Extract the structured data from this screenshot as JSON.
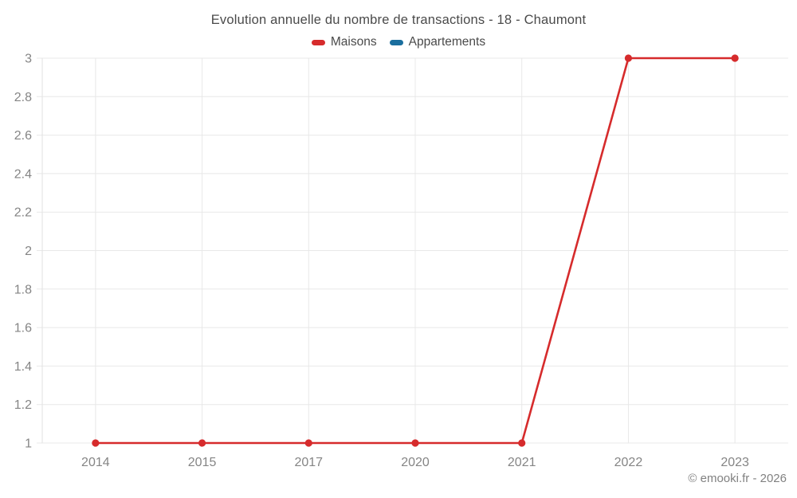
{
  "colors": {
    "background": "#ffffff",
    "grid": "#e8e8e8",
    "axis": "#e2e2e2",
    "tick_text": "#858585",
    "title_text": "#4a4a4a",
    "copyright_text": "#818181"
  },
  "chart_data": {
    "type": "line",
    "title": "Evolution annuelle du nombre de transactions - 18 - Chaumont",
    "categories": [
      "2014",
      "2015",
      "2017",
      "2020",
      "2021",
      "2022",
      "2023"
    ],
    "series": [
      {
        "name": "Maisons",
        "color": "#d62b2c",
        "values": [
          1,
          1,
          1,
          1,
          1,
          3,
          3
        ]
      },
      {
        "name": "Appartements",
        "color": "#1a6e9e",
        "values": []
      }
    ],
    "xlabel": "",
    "ylabel": "",
    "ylim": [
      1,
      3
    ],
    "y_ticks": [
      1,
      1.2,
      1.4,
      1.6,
      1.8,
      2,
      2.2,
      2.4,
      2.6,
      2.8,
      3
    ],
    "grid": true,
    "legend_position": "top",
    "watermark": "© emooki.fr - 2026"
  }
}
